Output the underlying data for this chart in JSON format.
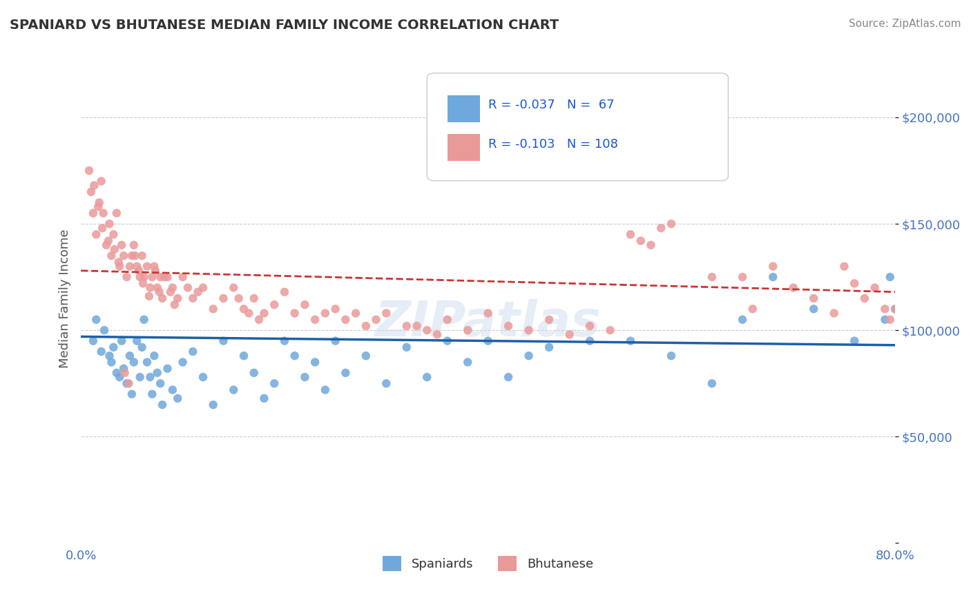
{
  "title": "SPANIARD VS BHUTANESE MEDIAN FAMILY INCOME CORRELATION CHART",
  "source": "Source: ZipAtlas.com",
  "xlabel": "",
  "ylabel": "Median Family Income",
  "xlim": [
    0.0,
    80.0
  ],
  "ylim": [
    0,
    230000
  ],
  "yticks": [
    0,
    50000,
    100000,
    150000,
    200000
  ],
  "ytick_labels": [
    "",
    "$50,000",
    "$100,000",
    "$150,000",
    "$200,000"
  ],
  "xticks": [
    0.0,
    10.0,
    20.0,
    30.0,
    40.0,
    50.0,
    60.0,
    70.0,
    80.0
  ],
  "xtick_labels": [
    "0.0%",
    "",
    "",
    "",
    "",
    "",
    "",
    "",
    "80.0%"
  ],
  "background_color": "#ffffff",
  "grid_color": "#cccccc",
  "title_color": "#333333",
  "axis_label_color": "#555555",
  "tick_color": "#4472c4",
  "watermark": "ZIPatlas",
  "legend_R1": "-0.037",
  "legend_N1": "67",
  "legend_R2": "-0.103",
  "legend_N2": "108",
  "spaniard_color": "#6fa8dc",
  "bhutanese_color": "#ea9999",
  "spaniard_line_color": "#1f5fa6",
  "bhutanese_line_color": "#cc3333",
  "spaniard_scatter_x": [
    1.2,
    1.5,
    2.0,
    2.3,
    2.8,
    3.0,
    3.2,
    3.5,
    3.8,
    4.0,
    4.2,
    4.5,
    4.8,
    5.0,
    5.2,
    5.5,
    5.8,
    6.0,
    6.2,
    6.5,
    6.8,
    7.0,
    7.2,
    7.5,
    7.8,
    8.0,
    8.5,
    9.0,
    9.5,
    10.0,
    11.0,
    12.0,
    13.0,
    14.0,
    15.0,
    16.0,
    17.0,
    18.0,
    19.0,
    20.0,
    21.0,
    22.0,
    23.0,
    24.0,
    25.0,
    26.0,
    28.0,
    30.0,
    32.0,
    34.0,
    36.0,
    38.0,
    40.0,
    42.0,
    44.0,
    46.0,
    50.0,
    54.0,
    58.0,
    62.0,
    65.0,
    68.0,
    72.0,
    76.0,
    79.0,
    79.5,
    80.0
  ],
  "spaniard_scatter_y": [
    95000,
    105000,
    90000,
    100000,
    88000,
    85000,
    92000,
    80000,
    78000,
    95000,
    82000,
    75000,
    88000,
    70000,
    85000,
    95000,
    78000,
    92000,
    105000,
    85000,
    78000,
    70000,
    88000,
    80000,
    75000,
    65000,
    82000,
    72000,
    68000,
    85000,
    90000,
    78000,
    65000,
    95000,
    72000,
    88000,
    80000,
    68000,
    75000,
    95000,
    88000,
    78000,
    85000,
    72000,
    95000,
    80000,
    88000,
    75000,
    92000,
    78000,
    95000,
    85000,
    95000,
    78000,
    88000,
    92000,
    95000,
    95000,
    88000,
    75000,
    105000,
    125000,
    110000,
    95000,
    105000,
    125000,
    110000
  ],
  "bhutanese_scatter_x": [
    0.8,
    1.0,
    1.2,
    1.5,
    1.8,
    2.0,
    2.2,
    2.5,
    2.8,
    3.0,
    3.2,
    3.5,
    3.8,
    4.0,
    4.2,
    4.5,
    4.8,
    5.0,
    5.2,
    5.5,
    5.8,
    6.0,
    6.2,
    6.5,
    6.8,
    7.0,
    7.2,
    7.5,
    7.8,
    8.0,
    8.5,
    9.0,
    9.5,
    10.0,
    10.5,
    11.0,
    12.0,
    13.0,
    14.0,
    15.0,
    16.0,
    17.0,
    18.0,
    19.0,
    20.0,
    21.0,
    22.0,
    23.0,
    24.0,
    25.0,
    26.0,
    27.0,
    28.0,
    29.0,
    30.0,
    32.0,
    34.0,
    36.0,
    38.0,
    40.0,
    42.0,
    44.0,
    46.0,
    48.0,
    50.0,
    52.0,
    54.0,
    56.0,
    58.0,
    62.0,
    65.0,
    66.0,
    68.0,
    70.0,
    72.0,
    74.0,
    75.0,
    76.0,
    77.0,
    78.0,
    79.0,
    79.5,
    80.0,
    55.0,
    57.0,
    33.0,
    35.0,
    15.5,
    16.5,
    17.5,
    8.2,
    8.8,
    5.3,
    5.7,
    6.1,
    6.7,
    7.3,
    4.3,
    4.7,
    1.3,
    1.7,
    2.1,
    2.7,
    3.3,
    3.7,
    7.7,
    9.2,
    11.5
  ],
  "bhutanese_scatter_y": [
    175000,
    165000,
    155000,
    145000,
    160000,
    170000,
    155000,
    140000,
    150000,
    135000,
    145000,
    155000,
    130000,
    140000,
    135000,
    125000,
    130000,
    135000,
    140000,
    130000,
    125000,
    135000,
    125000,
    130000,
    120000,
    125000,
    130000,
    120000,
    125000,
    115000,
    125000,
    120000,
    115000,
    125000,
    120000,
    115000,
    120000,
    110000,
    115000,
    120000,
    110000,
    115000,
    108000,
    112000,
    118000,
    108000,
    112000,
    105000,
    108000,
    110000,
    105000,
    108000,
    102000,
    105000,
    108000,
    102000,
    100000,
    105000,
    100000,
    108000,
    102000,
    100000,
    105000,
    98000,
    102000,
    100000,
    145000,
    140000,
    150000,
    125000,
    125000,
    110000,
    130000,
    120000,
    115000,
    108000,
    130000,
    122000,
    115000,
    120000,
    110000,
    105000,
    110000,
    142000,
    148000,
    102000,
    98000,
    115000,
    108000,
    105000,
    125000,
    118000,
    135000,
    128000,
    122000,
    116000,
    128000,
    80000,
    75000,
    168000,
    158000,
    148000,
    142000,
    138000,
    132000,
    118000,
    112000,
    118000
  ]
}
